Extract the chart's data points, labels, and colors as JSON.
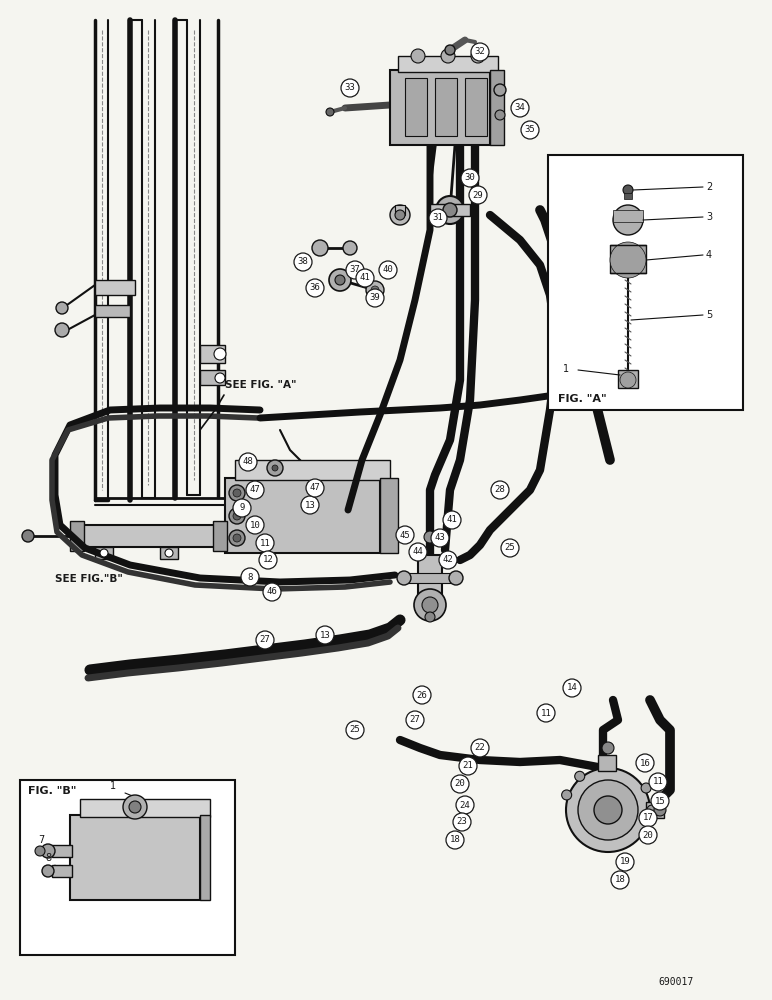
{
  "background_color": "#f5f5f0",
  "fig_width": 7.72,
  "fig_height": 10.0,
  "dpi": 100,
  "line_color": "#1a1a1a",
  "text_color": "#1a1a1a",
  "footer_text": "690017",
  "label_see_fig_a": "SEE FIG. \"A\"",
  "label_see_fig_b": "SEE FIG.\"B\"",
  "label_fig_a": "FIG. \"A\"",
  "label_fig_b": "FIG. \"B\""
}
